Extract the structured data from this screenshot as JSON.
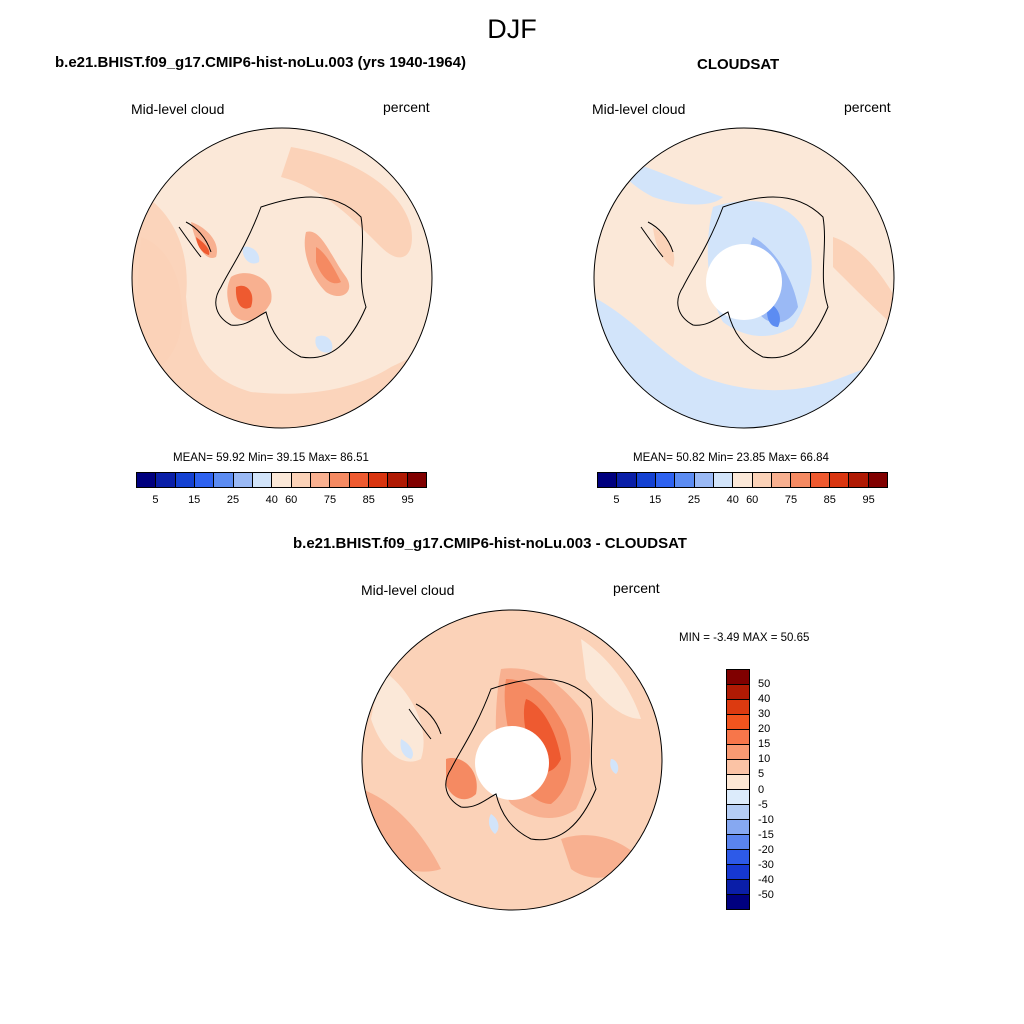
{
  "page": {
    "season_title": "DJF"
  },
  "panels": [
    {
      "title": "b.e21.BHIST.f09_g17.CMIP6-hist-noLu.003 (yrs 1940-1964)",
      "left_label": "Mid-level cloud",
      "right_label": "percent",
      "stats": "MEAN=  59.92  Min=  39.15  Max=  86.51"
    },
    {
      "title": "CLOUDSAT",
      "left_label": "Mid-level cloud",
      "right_label": "percent",
      "stats": "MEAN=  50.82  Min=  23.85  Max=  66.84"
    },
    {
      "title": "b.e21.BHIST.f09_g17.CMIP6-hist-noLu.003 - CLOUDSAT",
      "left_label": "Mid-level cloud",
      "right_label": "percent",
      "stats": "MIN =  -3.49 MAX =  50.65"
    }
  ],
  "abs_colorbar": {
    "colors": [
      "#00007f",
      "#0a1fa8",
      "#1441d2",
      "#2e62f0",
      "#5c8cf2",
      "#9ab9f5",
      "#d2e4fa",
      "#fbe8d8",
      "#fbd2b8",
      "#f8b090",
      "#f58a62",
      "#ee5a30",
      "#d93510",
      "#b01a04",
      "#800000"
    ],
    "tick_labels": [
      "5",
      "15",
      "25",
      "40",
      "60",
      "75",
      "85",
      "95"
    ]
  },
  "diff_colorbar": {
    "colors": [
      "#800000",
      "#b01a04",
      "#dc3a10",
      "#f2541e",
      "#f7764a",
      "#f99a72",
      "#fbc3a5",
      "#fde7d4",
      "#dcebfb",
      "#b4cdf5",
      "#86a8f1",
      "#5a84ef",
      "#2d5ae8",
      "#1638d2",
      "#0a1ea8",
      "#00007f"
    ],
    "tick_labels": [
      "50",
      "40",
      "30",
      "20",
      "15",
      "10",
      "5",
      "0",
      "-5",
      "-10",
      "-15",
      "-20",
      "-30",
      "-40",
      "-50"
    ]
  },
  "map_colors": {
    "background": "#fbe8d8",
    "light_pos": "#fbd2b8",
    "mid_pos": "#f8b090",
    "strong_pos": "#f58a62",
    "very_strong_pos": "#ee5a30",
    "light_neg": "#d2e4fa",
    "mid_neg": "#9ab9f5",
    "strong_neg": "#5c8cf2"
  }
}
